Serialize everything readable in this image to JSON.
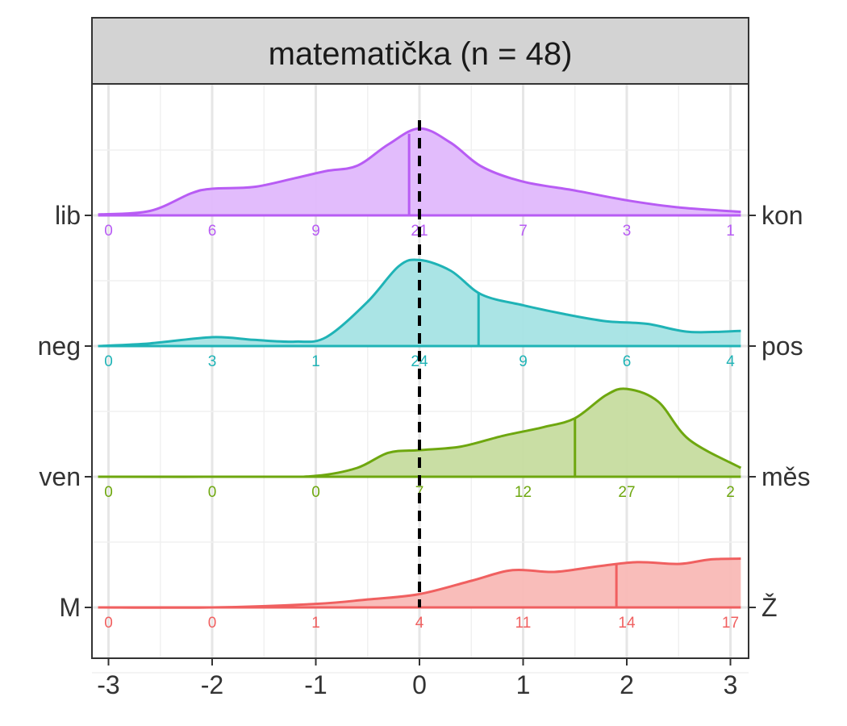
{
  "chart_data": {
    "type": "ridgeline",
    "title": "matematička (n = 48)",
    "xlabel": "",
    "ylabel": "",
    "xlim": [
      -3.1,
      3.1
    ],
    "x_ticks": [
      "-3",
      "-2",
      "-1",
      "0",
      "1",
      "2",
      "3"
    ],
    "reference_line_x": 0,
    "grid": true,
    "legend": "none",
    "series": [
      {
        "left_label": "lib",
        "right_label": "kon",
        "color": "#b85cf4",
        "fill": "#e0b8fc",
        "mean": -0.1,
        "counts": [
          "0",
          "6",
          "9",
          "21",
          "7",
          "3",
          "1"
        ],
        "density": [
          [
            -3.1,
            0.01
          ],
          [
            -2.6,
            0.05
          ],
          [
            -2.2,
            0.25
          ],
          [
            -2.0,
            0.3
          ],
          [
            -1.6,
            0.32
          ],
          [
            -1.2,
            0.42
          ],
          [
            -0.9,
            0.5
          ],
          [
            -0.6,
            0.56
          ],
          [
            -0.3,
            0.8
          ],
          [
            0.0,
            0.98
          ],
          [
            0.3,
            0.82
          ],
          [
            0.6,
            0.55
          ],
          [
            1.0,
            0.38
          ],
          [
            1.5,
            0.28
          ],
          [
            2.0,
            0.17
          ],
          [
            2.5,
            0.09
          ],
          [
            3.1,
            0.04
          ]
        ]
      },
      {
        "left_label": "neg",
        "right_label": "pos",
        "color": "#1fb3b6",
        "fill": "#a5e3e4",
        "mean": 0.57,
        "counts": [
          "0",
          "3",
          "1",
          "24",
          "9",
          "6",
          "4"
        ],
        "density": [
          [
            -3.1,
            0.0
          ],
          [
            -2.6,
            0.03
          ],
          [
            -2.0,
            0.1
          ],
          [
            -1.6,
            0.07
          ],
          [
            -1.2,
            0.05
          ],
          [
            -0.9,
            0.1
          ],
          [
            -0.5,
            0.5
          ],
          [
            -0.2,
            0.9
          ],
          [
            0.0,
            0.97
          ],
          [
            0.3,
            0.85
          ],
          [
            0.6,
            0.58
          ],
          [
            1.0,
            0.46
          ],
          [
            1.4,
            0.36
          ],
          [
            1.8,
            0.28
          ],
          [
            2.2,
            0.25
          ],
          [
            2.6,
            0.16
          ],
          [
            3.1,
            0.17
          ]
        ]
      },
      {
        "left_label": "ven",
        "right_label": "měs",
        "color": "#6ea70f",
        "fill": "#c6dc9f",
        "mean": 1.5,
        "counts": [
          "0",
          "0",
          "0",
          "7",
          "12",
          "27",
          "2"
        ],
        "density": [
          [
            -3.1,
            0.0
          ],
          [
            -1.5,
            0.0
          ],
          [
            -1.0,
            0.01
          ],
          [
            -0.6,
            0.1
          ],
          [
            -0.3,
            0.27
          ],
          [
            0.0,
            0.3
          ],
          [
            0.4,
            0.34
          ],
          [
            0.8,
            0.46
          ],
          [
            1.2,
            0.56
          ],
          [
            1.5,
            0.66
          ],
          [
            1.8,
            0.92
          ],
          [
            2.0,
            0.99
          ],
          [
            2.3,
            0.85
          ],
          [
            2.6,
            0.42
          ],
          [
            3.1,
            0.1
          ]
        ]
      },
      {
        "left_label": "M",
        "right_label": "Ž",
        "color": "#f06060",
        "fill": "#f9b9b6",
        "mean": 1.9,
        "counts": [
          "0",
          "0",
          "1",
          "4",
          "11",
          "14",
          "17"
        ],
        "density": [
          [
            -3.1,
            0.0
          ],
          [
            -2.0,
            0.0
          ],
          [
            -1.0,
            0.04
          ],
          [
            -0.5,
            0.09
          ],
          [
            0.0,
            0.15
          ],
          [
            0.5,
            0.3
          ],
          [
            0.9,
            0.42
          ],
          [
            1.3,
            0.4
          ],
          [
            1.7,
            0.46
          ],
          [
            2.1,
            0.51
          ],
          [
            2.5,
            0.49
          ],
          [
            2.8,
            0.54
          ],
          [
            3.1,
            0.55
          ]
        ]
      }
    ]
  }
}
